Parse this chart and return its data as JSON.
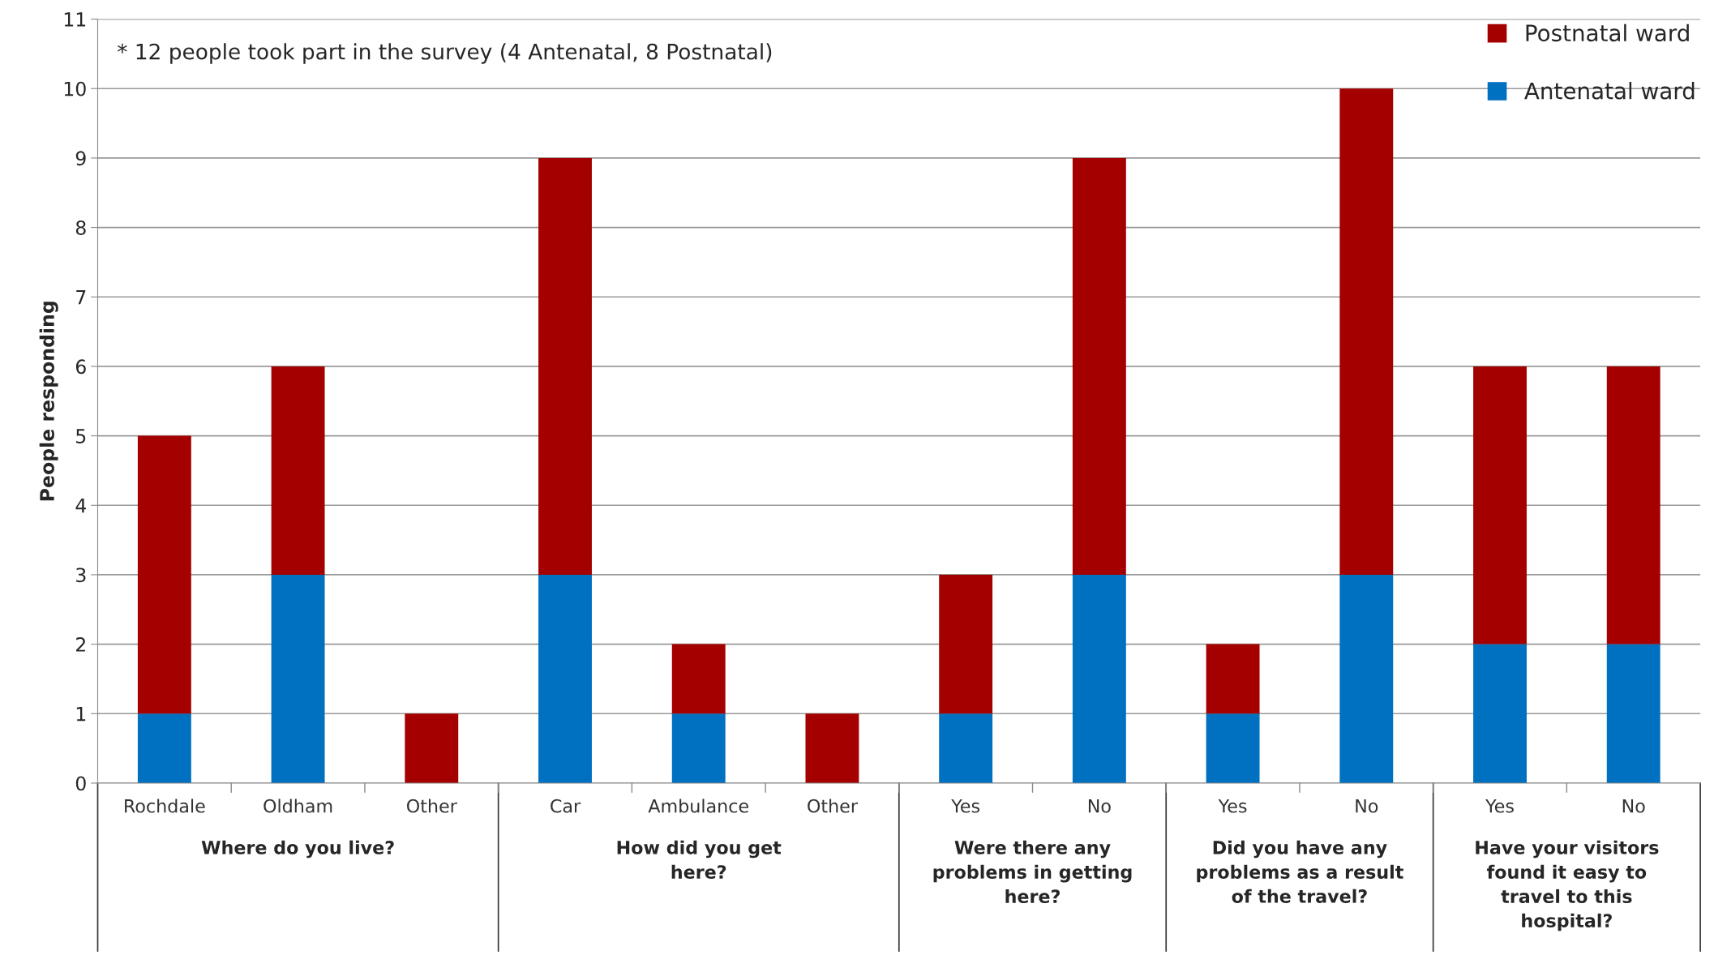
{
  "chart_data": {
    "type": "bar",
    "stacked": true,
    "ylabel": "People responding",
    "categories": [
      "Rochdale",
      "Oldham",
      "Other",
      "Car",
      "Ambulance",
      "Other",
      "Yes",
      "No",
      "Yes",
      "No",
      "Yes",
      "No"
    ],
    "series": [
      {
        "name": "Antenatal ward",
        "color": "#0070c0",
        "values": [
          1,
          3,
          0,
          3,
          1,
          0,
          1,
          3,
          1,
          3,
          2,
          2
        ]
      },
      {
        "name": "Postnatal ward",
        "color": "#a50000",
        "values": [
          4,
          3,
          1,
          6,
          1,
          1,
          2,
          6,
          1,
          7,
          4,
          4
        ]
      }
    ],
    "ylim": [
      0,
      11
    ],
    "yticks": [
      0,
      1,
      2,
      3,
      4,
      5,
      6,
      7,
      8,
      9,
      10,
      11
    ],
    "grid": "y",
    "legend": "top right",
    "annotations": [
      "* 12 people took part in the survey (4 Antenatal, 8 Postnatal)",
      "Where do you live?",
      "How did you get here?",
      "Were there any problems in getting here?",
      "Did you have any problems as a result of the travel?",
      "Have your visitors found it easy to travel to this hospital?"
    ]
  }
}
